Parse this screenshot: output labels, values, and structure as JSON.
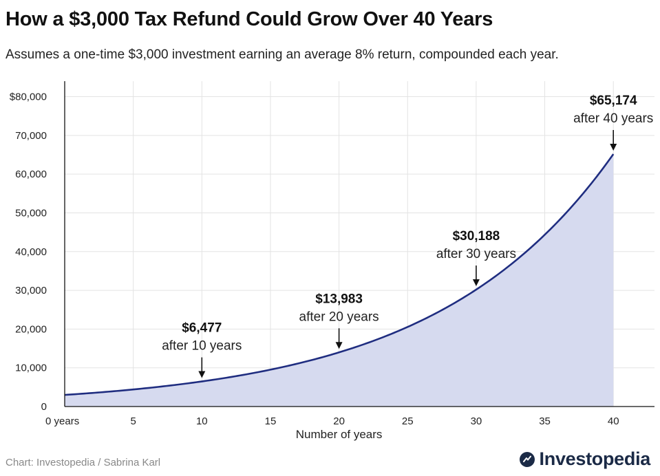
{
  "header": {
    "title": "How a $3,000 Tax Refund Could Grow Over 40 Years",
    "subtitle": "Assumes a one-time $3,000 investment earning an average 8% return, compounded each year."
  },
  "footer": {
    "credit": "Chart: Investopedia / Sabrina Karl",
    "brand": "Investopedia"
  },
  "colors": {
    "line": "#1f2d80",
    "fill": "#d6daef",
    "grid": "#e3e3e3",
    "axis": "#111111",
    "brand": "#1b2a46"
  },
  "chart_data": {
    "type": "area",
    "principal": 3000,
    "rate": 0.08,
    "x": [
      0,
      5,
      10,
      15,
      20,
      25,
      30,
      35,
      40
    ],
    "y": [
      3000,
      4408,
      6477,
      9517,
      13983,
      20545,
      30188,
      44354,
      65174
    ],
    "xlabel": "Number of years",
    "ylabel": "",
    "xlim": [
      0,
      43
    ],
    "ylim": [
      0,
      84000
    ],
    "x_ticks": [
      0,
      5,
      10,
      15,
      20,
      25,
      30,
      35,
      40
    ],
    "x_tick_labels": [
      "0 years",
      "5",
      "10",
      "15",
      "20",
      "25",
      "30",
      "35",
      "40"
    ],
    "y_ticks": [
      0,
      10000,
      20000,
      30000,
      40000,
      50000,
      60000,
      70000,
      80000
    ],
    "y_tick_labels": [
      "0",
      "10,000",
      "20,000",
      "30,000",
      "40,000",
      "50,000",
      "60,000",
      "70,000",
      "$80,000"
    ],
    "grid": true,
    "annotations": [
      {
        "x": 10,
        "y": 6477,
        "value": "$6,477",
        "label": "after 10 years"
      },
      {
        "x": 20,
        "y": 13983,
        "value": "$13,983",
        "label": "after 20 years"
      },
      {
        "x": 30,
        "y": 30188,
        "value": "$30,188",
        "label": "after 30 years"
      },
      {
        "x": 40,
        "y": 65174,
        "value": "$65,174",
        "label": "after 40 years"
      }
    ]
  }
}
